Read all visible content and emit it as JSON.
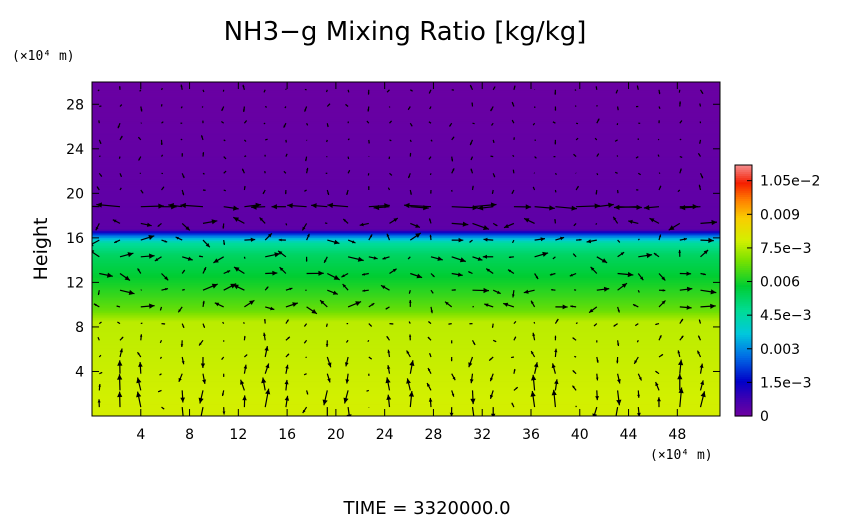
{
  "chart_data": {
    "type": "heatmap",
    "title": "NH3−g Mixing Ratio [kg/kg]",
    "ylabel": "Height",
    "y_unit": "(×10⁴ m)",
    "x_unit": "(×10⁴ m)",
    "x_ticks": [
      4,
      8,
      12,
      16,
      20,
      24,
      28,
      32,
      36,
      40,
      44,
      48
    ],
    "y_ticks": [
      4,
      8,
      12,
      16,
      20,
      24,
      28
    ],
    "xlim": [
      0,
      51.5
    ],
    "ylim": [
      0,
      30
    ],
    "footer": "TIME = 3320000.0",
    "colorbar": {
      "range": [
        0,
        0.0112
      ],
      "tick_values": [
        0,
        0.0015,
        0.003,
        0.0045,
        0.006,
        0.0075,
        0.009,
        0.0105
      ],
      "tick_labels": [
        "0",
        "1.5e−3",
        "0.003",
        "4.5e−3",
        "0.006",
        "7.5e−3",
        "0.009",
        "1.05e−2"
      ]
    },
    "field_profile": {
      "description_units": "height (x10^4 m) vs mixing ratio (kg/kg)",
      "levels": [
        {
          "height": 0,
          "value": 0.0079
        },
        {
          "height": 8.5,
          "value": 0.0076
        },
        {
          "height": 9.5,
          "value": 0.0068
        },
        {
          "height": 11,
          "value": 0.0063
        },
        {
          "height": 13,
          "value": 0.0057
        },
        {
          "height": 14.5,
          "value": 0.0053
        },
        {
          "height": 15.6,
          "value": 0.0046
        },
        {
          "height": 16.3,
          "value": 0.0025
        },
        {
          "height": 16.8,
          "value": 0.0003
        },
        {
          "height": 30,
          "value": 0.0001
        }
      ]
    },
    "vectors": {
      "overlay": "wind vectors",
      "grid_x_spacing": 1.7,
      "grid_y_spacing": 1.5
    }
  }
}
